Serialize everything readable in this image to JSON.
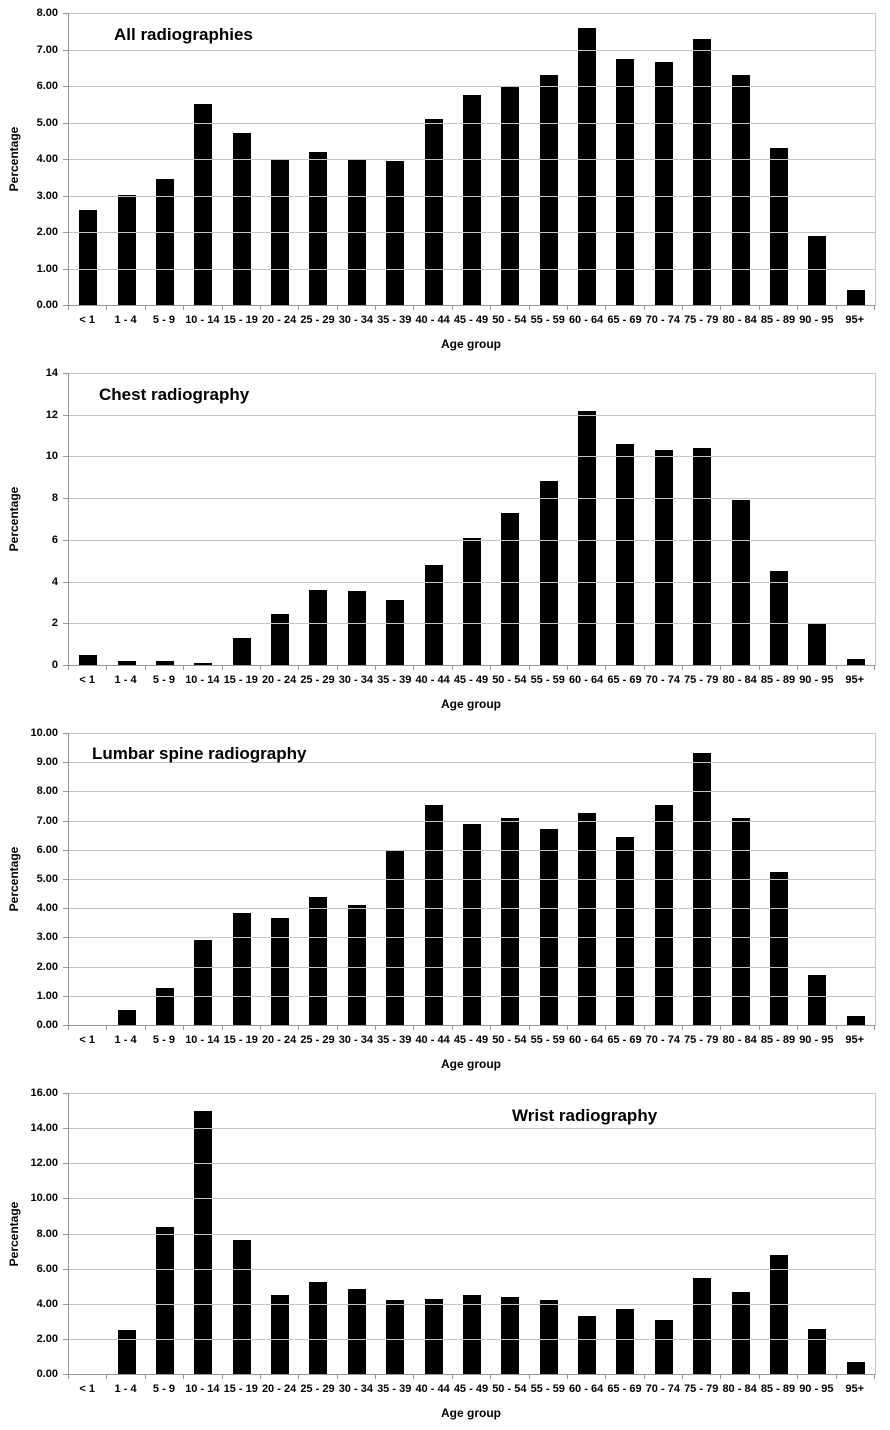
{
  "colors": {
    "bar": "#000000",
    "gridline": "#c4c4c4",
    "axis_line": "#969696",
    "background": "#ffffff",
    "text": "#000000"
  },
  "chart_data": [
    {
      "type": "bar",
      "title": "All radiographies",
      "xlabel": "Age group",
      "ylabel": "Percentage",
      "ylim": [
        0,
        8
      ],
      "grid": true,
      "legend": false,
      "ytick_labels": [
        "0.00",
        "1.00",
        "2.00",
        "3.00",
        "4.00",
        "5.00",
        "6.00",
        "7.00",
        "8.00"
      ],
      "categories": [
        "< 1",
        "1 - 4",
        "5 - 9",
        "10 - 14",
        "15 - 19",
        "20 - 24",
        "25 - 29",
        "30 - 34",
        "35 - 39",
        "40 - 44",
        "45 - 49",
        "50 - 54",
        "55 - 59",
        "60 - 64",
        "65 - 69",
        "70 - 74",
        "75 - 79",
        "80 - 84",
        "85 - 89",
        "90 - 95",
        "95+"
      ],
      "values": [
        2.6,
        3.0,
        3.45,
        5.5,
        4.7,
        4.0,
        4.2,
        4.0,
        3.95,
        5.1,
        5.75,
        6.0,
        6.3,
        7.6,
        6.75,
        6.65,
        7.3,
        6.3,
        4.3,
        1.9,
        0.4
      ]
    },
    {
      "type": "bar",
      "title": "Chest radiography",
      "xlabel": "Age group",
      "ylabel": "Percentage",
      "ylim": [
        0,
        14
      ],
      "grid": true,
      "legend": false,
      "ytick_labels": [
        "0",
        "2",
        "4",
        "6",
        "8",
        "10",
        "12",
        "14"
      ],
      "categories": [
        "< 1",
        "1 - 4",
        "5 - 9",
        "10 - 14",
        "15 - 19",
        "20 - 24",
        "25 - 29",
        "30 - 34",
        "35 - 39",
        "40 - 44",
        "45 - 49",
        "50 - 54",
        "55 - 59",
        "60 - 64",
        "65 - 69",
        "70 - 74",
        "75 - 79",
        "80 - 84",
        "85 - 89",
        "90 - 95",
        "95+"
      ],
      "values": [
        0.5,
        0.2,
        0.2,
        0.1,
        1.3,
        2.45,
        3.6,
        3.55,
        3.1,
        4.8,
        6.1,
        7.3,
        8.8,
        12.2,
        10.6,
        10.3,
        10.4,
        7.9,
        4.5,
        2.0,
        0.3
      ]
    },
    {
      "type": "bar",
      "title": "Lumbar spine radiography",
      "xlabel": "Age group",
      "ylabel": "Percentage",
      "ylim": [
        0,
        10
      ],
      "grid": true,
      "legend": false,
      "ytick_labels": [
        "0.00",
        "1.00",
        "2.00",
        "3.00",
        "4.00",
        "5.00",
        "6.00",
        "7.00",
        "8.00",
        "9.00",
        "10.00"
      ],
      "categories": [
        "< 1",
        "1 - 4",
        "5 - 9",
        "10 - 14",
        "15 - 19",
        "20 - 24",
        "25 - 29",
        "30 - 34",
        "35 - 39",
        "40 - 44",
        "45 - 49",
        "50 - 54",
        "55 - 59",
        "60 - 64",
        "65 - 69",
        "70 - 74",
        "75 - 79",
        "80 - 84",
        "85 - 89",
        "90 - 95",
        "95+"
      ],
      "values": [
        0,
        0.5,
        1.25,
        2.9,
        3.85,
        3.65,
        4.4,
        4.1,
        6.0,
        7.55,
        6.9,
        7.1,
        6.7,
        7.25,
        6.45,
        7.55,
        9.3,
        7.1,
        5.25,
        1.7,
        0.3
      ]
    },
    {
      "type": "bar",
      "title": "Wrist radiography",
      "xlabel": "Age group",
      "ylabel": "Percentage",
      "ylim": [
        0,
        16
      ],
      "grid": true,
      "legend": false,
      "ytick_labels": [
        "0.00",
        "2.00",
        "4.00",
        "6.00",
        "8.00",
        "10.00",
        "12.00",
        "14.00",
        "16.00"
      ],
      "categories": [
        "< 1",
        "1 - 4",
        "5 - 9",
        "10 - 14",
        "15 - 19",
        "20 - 24",
        "25 - 29",
        "30 - 34",
        "35 - 39",
        "40 - 44",
        "45 - 49",
        "50 - 54",
        "55 - 59",
        "60 - 64",
        "65 - 69",
        "70 - 74",
        "75 - 79",
        "80 - 84",
        "85 - 89",
        "90 - 95",
        "95+"
      ],
      "values": [
        0,
        2.5,
        8.35,
        15.0,
        7.65,
        4.5,
        5.25,
        4.85,
        4.2,
        4.25,
        4.5,
        4.4,
        4.2,
        3.3,
        3.7,
        3.05,
        5.45,
        4.65,
        6.8,
        2.55,
        0.7
      ]
    }
  ]
}
